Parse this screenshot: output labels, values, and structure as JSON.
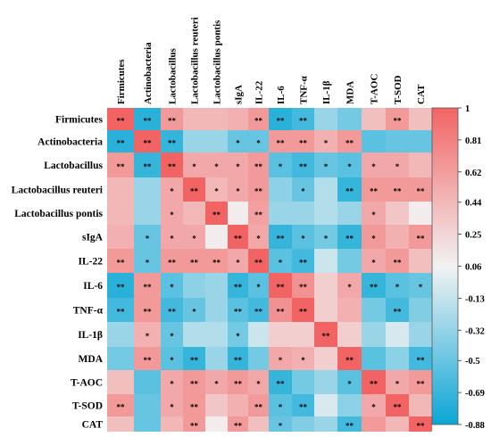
{
  "chart_data": {
    "type": "heatmap",
    "title": "",
    "columns": [
      "Firmicutes",
      "Actinobacteria",
      "Lactobacillus",
      "Lactobacillus reuteri",
      "Lactobacillus pontis",
      "sIgA",
      "IL-22",
      "IL-6",
      "TNF-α",
      "IL-1β",
      "MDA",
      "T-AOC",
      "T-SOD",
      "CAT"
    ],
    "rows": [
      "Firmicutes",
      "Actinobacteria",
      "Lactobacillus",
      "Lactobacillus reuteri",
      "Lactobacillus pontis",
      "sIgA",
      "IL-22",
      "IL-6",
      "TNF-α",
      "IL-1β",
      "MDA",
      "T-AOC",
      "T-SOD",
      "CAT"
    ],
    "values": [
      [
        1.0,
        -0.75,
        0.65,
        0.45,
        0.45,
        0.5,
        0.65,
        -0.75,
        -0.65,
        -0.3,
        -0.45,
        0.4,
        0.65,
        0.4
      ],
      [
        -0.75,
        1.0,
        -0.7,
        -0.3,
        -0.3,
        -0.5,
        -0.5,
        0.65,
        0.65,
        0.5,
        0.65,
        -0.55,
        -0.5,
        -0.5
      ],
      [
        0.65,
        -0.7,
        1.0,
        0.55,
        0.55,
        0.55,
        0.65,
        -0.55,
        -0.65,
        -0.5,
        -0.55,
        0.55,
        0.55,
        0.45
      ],
      [
        0.45,
        -0.3,
        0.55,
        1.0,
        0.45,
        0.55,
        0.65,
        -0.35,
        -0.5,
        -0.2,
        -0.7,
        0.65,
        0.65,
        0.65
      ],
      [
        0.45,
        -0.3,
        0.55,
        0.45,
        1.0,
        0.1,
        0.6,
        -0.3,
        -0.3,
        -0.2,
        -0.3,
        0.55,
        0.35,
        0.1
      ],
      [
        0.5,
        -0.5,
        0.55,
        0.55,
        0.1,
        1.0,
        0.55,
        -0.7,
        -0.55,
        -0.45,
        -0.7,
        0.65,
        0.5,
        0.65
      ],
      [
        0.65,
        -0.5,
        0.65,
        0.65,
        0.65,
        0.55,
        1.0,
        -0.55,
        -0.65,
        -0.1,
        -0.45,
        0.55,
        0.65,
        0.4
      ],
      [
        -0.75,
        0.65,
        -0.55,
        -0.35,
        -0.3,
        -0.7,
        -0.55,
        1.0,
        0.7,
        0.3,
        0.55,
        -0.7,
        -0.55,
        -0.5
      ],
      [
        -0.65,
        0.65,
        -0.65,
        -0.5,
        -0.3,
        -0.55,
        -0.65,
        0.7,
        1.0,
        0.3,
        0.5,
        -0.45,
        -0.65,
        -0.4
      ],
      [
        -0.3,
        0.5,
        -0.5,
        -0.2,
        -0.2,
        -0.45,
        -0.1,
        0.3,
        0.3,
        1.0,
        0.3,
        -0.3,
        -0.05,
        -0.3
      ],
      [
        -0.45,
        0.65,
        -0.55,
        -0.7,
        -0.3,
        -0.7,
        -0.45,
        0.55,
        0.5,
        0.3,
        1.0,
        -0.55,
        -0.35,
        -0.65
      ],
      [
        0.4,
        -0.55,
        0.55,
        0.65,
        0.55,
        0.65,
        0.55,
        -0.7,
        -0.45,
        -0.3,
        -0.55,
        1.0,
        0.55,
        0.65
      ],
      [
        0.65,
        -0.5,
        0.55,
        0.65,
        0.35,
        0.5,
        0.65,
        -0.55,
        -0.65,
        -0.05,
        -0.35,
        0.55,
        1.0,
        0.45
      ],
      [
        0.4,
        -0.5,
        0.45,
        0.65,
        0.1,
        0.65,
        0.4,
        -0.5,
        -0.4,
        -0.3,
        -0.65,
        0.65,
        0.45,
        1.0
      ]
    ],
    "significance": [
      [
        "**",
        "**",
        "**",
        "",
        "",
        "",
        "**",
        "**",
        "**",
        "",
        "",
        "",
        "**",
        ""
      ],
      [
        "**",
        "**",
        "**",
        "",
        "",
        "*",
        "*",
        "**",
        "**",
        "*",
        "**",
        "",
        "",
        ""
      ],
      [
        "**",
        "**",
        "**",
        "*",
        "*",
        "*",
        "**",
        "*",
        "**",
        "*",
        "*",
        "*",
        "*",
        ""
      ],
      [
        "",
        "",
        "*",
        "**",
        "*",
        "*",
        "**",
        "",
        "*",
        "",
        "**",
        "**",
        "**",
        "**"
      ],
      [
        "",
        "",
        "*",
        "",
        "**",
        "",
        "**",
        "",
        "",
        "",
        "",
        "*",
        "",
        ""
      ],
      [
        "",
        "*",
        "*",
        "*",
        "",
        "**",
        "*",
        "**",
        "*",
        "*",
        "**",
        "*",
        "",
        "**"
      ],
      [
        "**",
        "*",
        "**",
        "**",
        "**",
        "*",
        "**",
        "*",
        "**",
        "",
        "",
        "*",
        "**",
        ""
      ],
      [
        "**",
        "**",
        "*",
        "",
        "",
        "**",
        "*",
        "**",
        "**",
        "",
        "*",
        "**",
        "*",
        "*"
      ],
      [
        "**",
        "**",
        "**",
        "*",
        "",
        "**",
        "**",
        "**",
        "**",
        "",
        "",
        "",
        "**",
        ""
      ],
      [
        "",
        "*",
        "*",
        "",
        "",
        "*",
        "",
        "",
        "",
        "**",
        "",
        "",
        "",
        ""
      ],
      [
        "",
        "**",
        "*",
        "**",
        "",
        "**",
        "",
        "*",
        "*",
        "",
        "**",
        "",
        "",
        "**"
      ],
      [
        "",
        "",
        "*",
        "**",
        "*",
        "**",
        "*",
        "**",
        "",
        "",
        "*",
        "**",
        "*",
        "**"
      ],
      [
        "**",
        "",
        "*",
        "**",
        "",
        "",
        "**",
        "*",
        "**",
        "",
        "",
        "*",
        "**",
        ""
      ],
      [
        "",
        "",
        "",
        "**",
        "",
        "**",
        "",
        "*",
        "",
        "",
        "**",
        "",
        "",
        "**"
      ]
    ],
    "colorbar": {
      "range": [
        -0.88,
        1
      ],
      "ticks": [
        "1",
        "0.81",
        "0.62",
        "0.44",
        "0.25",
        "0.06",
        "-0.13",
        "-0.32",
        "-0.5",
        "-0.69",
        "-0.88"
      ],
      "high_color": "#f26464",
      "mid_color": "#f2f2f2",
      "low_color": "#0aa6d6"
    }
  }
}
